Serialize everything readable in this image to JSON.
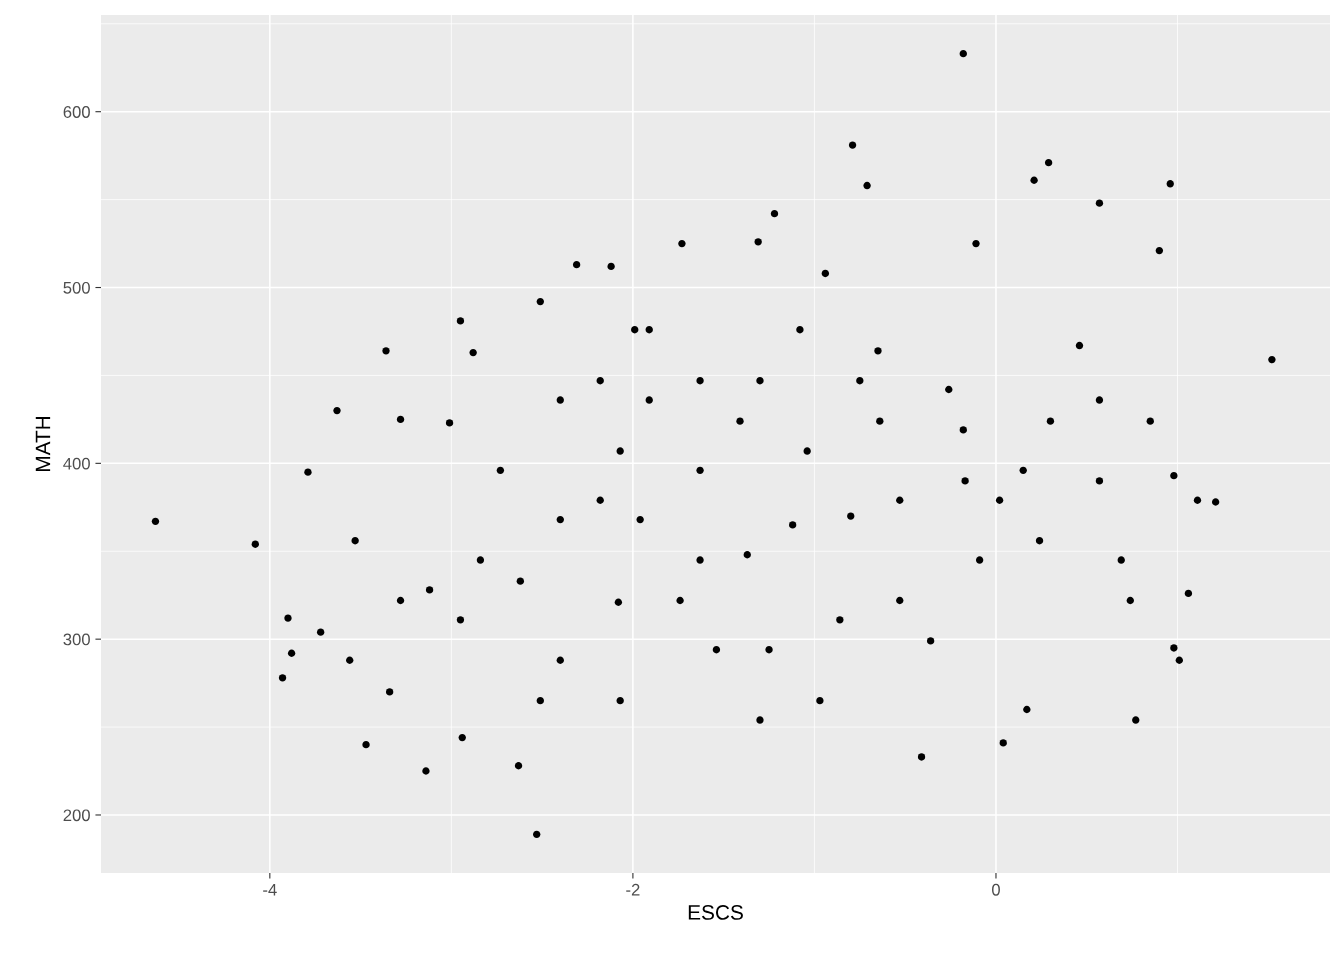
{
  "chart_data": {
    "type": "scatter",
    "xlabel": "ESCS",
    "ylabel": "MATH",
    "x": [
      -4.63,
      -4.08,
      -3.93,
      -3.88,
      -3.9,
      -3.79,
      -3.72,
      -3.63,
      -3.53,
      -3.47,
      -3.36,
      -3.34,
      -3.28,
      -3.14,
      -2.95,
      -3.01,
      -2.88,
      -2.94,
      -2.63,
      -2.53,
      -2.51,
      -2.31,
      -2.12,
      -2.18,
      -2.08,
      -1.99,
      -1.73,
      -1.54,
      -1.37,
      -1.31,
      -1.22,
      -1.12,
      -1.04,
      -0.94,
      -0.79,
      -0.71,
      -0.8,
      -0.65,
      -0.41,
      -0.18,
      -0.26,
      -0.17,
      -0.11,
      0.04,
      0.15,
      0.17,
      0.21,
      0.29,
      0.57,
      0.77,
      0.96,
      0.98,
      1.06,
      1.11,
      1.52,
      1.21,
      0.98,
      0.69,
      0.46,
      0.24,
      0.02,
      -0.18,
      -0.53,
      -0.64,
      -0.97,
      -1.25,
      -1.63,
      -1.91,
      -2.4,
      -2.62,
      -2.84,
      -3.12,
      -3.28,
      -3.56,
      0.3,
      0.57,
      0.74,
      -1.3,
      -1.63,
      -2.18,
      -1.96,
      -1.74,
      -2.4,
      -2.51,
      -2.95,
      -0.36,
      -0.09,
      0.57,
      0.9,
      0.85,
      1.01,
      -2.07,
      -1.3,
      -0.86,
      -0.53,
      -1.63,
      -1.41,
      -1.91,
      -1.08,
      -2.07,
      -0.75,
      -2.4,
      -2.73
    ],
    "values": [
      367,
      354,
      278,
      292,
      312,
      395,
      304,
      430,
      356,
      240,
      464,
      270,
      425,
      225,
      481,
      423,
      463,
      244,
      228,
      189,
      492,
      513,
      512,
      379,
      321,
      476,
      525,
      294,
      348,
      526,
      542,
      365,
      407,
      508,
      581,
      558,
      370,
      464,
      233,
      633,
      442,
      390,
      525,
      241,
      396,
      260,
      561,
      571,
      548,
      254,
      559,
      393,
      326,
      379,
      459,
      378,
      295,
      345,
      467,
      356,
      379,
      419,
      322,
      424,
      265,
      294,
      345,
      436,
      368,
      333,
      345,
      328,
      322,
      288,
      424,
      390,
      322,
      447,
      396,
      447,
      368,
      322,
      288,
      265,
      311,
      299,
      345,
      436,
      521,
      424,
      288,
      265,
      254,
      311,
      379,
      447,
      424,
      476,
      476,
      407,
      447,
      436,
      396
    ],
    "color": "#000000",
    "marker": "circle",
    "grid": true,
    "xlim": [
      -4.93,
      1.84
    ],
    "ylim": [
      167,
      655
    ],
    "xticks": [
      -4,
      -2,
      0
    ],
    "yticks": [
      200,
      300,
      400,
      500,
      600
    ]
  }
}
